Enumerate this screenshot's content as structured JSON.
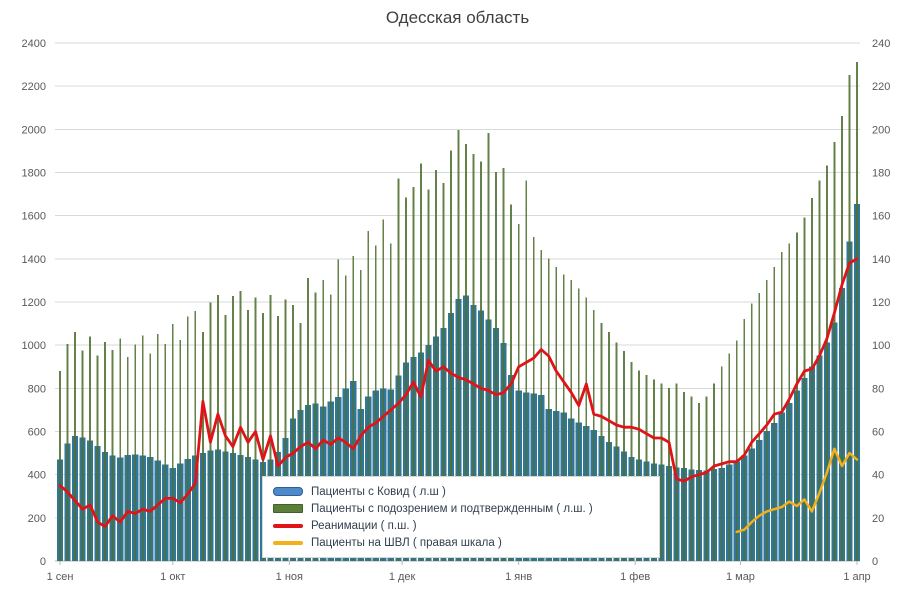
{
  "title": "Одесская область",
  "colors": {
    "bars_covid": "#307698",
    "bars_suspected": "#4f7030",
    "line_reanimation": "#e01417",
    "line_shvl": "#f2b01a",
    "grid": "#d9d9d9",
    "axis_line": "#b7b7b7",
    "axis_text": "#595959",
    "title_text": "#404040"
  },
  "legend": {
    "items": [
      {
        "label": "Пациенты с Ковид ( л.ш )",
        "type": "bar",
        "color": "#4e8ac9",
        "border": "#2d5e96"
      },
      {
        "label": "Пациенты с подозрением и подтвержденным ( л.ш. )",
        "type": "bar",
        "color": "#5b7e38",
        "border": "#42602a"
      },
      {
        "label": "Реанимации ( п.ш. )",
        "type": "line",
        "color": "#e01417",
        "border": "#e01417"
      },
      {
        "label": "Пациенты на ШВЛ ( правая шкала )",
        "type": "line",
        "color": "#f2b01a",
        "border": "#f2b01a"
      }
    ]
  },
  "chart_data": {
    "type": "bar+line combo, dual axis",
    "title": "Одесская область",
    "x_unit": "days since 1 сен, one point every 2 days",
    "day_range": [
      0,
      212
    ],
    "day_step": 2,
    "x_ticks": [
      {
        "label": "1 сен",
        "day": 0
      },
      {
        "label": "1 окт",
        "day": 30
      },
      {
        "label": "1 ноя",
        "day": 61
      },
      {
        "label": "1 дек",
        "day": 91
      },
      {
        "label": "1 янв",
        "day": 122
      },
      {
        "label": "1 фев",
        "day": 153
      },
      {
        "label": "1 мар",
        "day": 181
      },
      {
        "label": "1 апр",
        "day": 212
      }
    ],
    "left_axis": {
      "min": 0,
      "max": 2400,
      "step": 200
    },
    "right_axis": {
      "min": 0,
      "max": 240,
      "step": 20
    },
    "series": [
      {
        "name": "Пациенты с Ковид ( л.ш )",
        "type": "bar",
        "axis": "left",
        "color": "#307698",
        "start_day": 0,
        "values": [
          470,
          545,
          580,
          572,
          558,
          532,
          505,
          488,
          480,
          490,
          494,
          488,
          482,
          465,
          448,
          432,
          452,
          472,
          488,
          500,
          512,
          516,
          508,
          500,
          490,
          482,
          470,
          458,
          470,
          505,
          570,
          660,
          700,
          722,
          730,
          715,
          738,
          760,
          800,
          835,
          705,
          762,
          790,
          800,
          795,
          860,
          920,
          945,
          965,
          1000,
          1040,
          1080,
          1150,
          1215,
          1230,
          1185,
          1160,
          1120,
          1080,
          1010,
          862,
          790,
          780,
          775,
          768,
          705,
          695,
          688,
          660,
          642,
          625,
          608,
          580,
          552,
          530,
          508,
          482,
          470,
          462,
          452,
          448,
          440,
          434,
          430,
          424,
          421,
          420,
          426,
          432,
          446,
          462,
          488,
          522,
          560,
          602,
          640,
          688,
          732,
          790,
          848,
          902,
          952,
          1012,
          1105,
          1265,
          1480,
          1655
        ]
      },
      {
        "name": "Пациенты с подозрением и подтвержденным ( л.ш. )",
        "type": "bar",
        "axis": "left",
        "color": "#4f7030",
        "start_day": 0,
        "values": [
          880,
          1005,
          1060,
          975,
          1040,
          952,
          1015,
          978,
          1032,
          945,
          1002,
          1045,
          962,
          1052,
          1005,
          1098,
          1025,
          1132,
          1158,
          1062,
          1198,
          1232,
          1140,
          1228,
          1252,
          1162,
          1222,
          1148,
          1232,
          1135,
          1212,
          1185,
          1102,
          1312,
          1245,
          1302,
          1235,
          1398,
          1322,
          1412,
          1348,
          1528,
          1462,
          1582,
          1472,
          1772,
          1685,
          1732,
          1842,
          1722,
          1812,
          1752,
          1902,
          1998,
          1932,
          1885,
          1852,
          1982,
          1802,
          1822,
          1652,
          1562,
          1762,
          1502,
          1442,
          1402,
          1362,
          1328,
          1302,
          1262,
          1222,
          1162,
          1102,
          1062,
          1012,
          972,
          922,
          882,
          862,
          842,
          822,
          802,
          822,
          782,
          762,
          732,
          762,
          822,
          902,
          962,
          1022,
          1122,
          1192,
          1242,
          1302,
          1362,
          1432,
          1472,
          1522,
          1592,
          1682,
          1762,
          1832,
          1942,
          2062,
          2252,
          2312
        ]
      },
      {
        "name": "Реанимации ( п.ш. )",
        "type": "line",
        "axis": "right",
        "color": "#e01417",
        "start_day": 0,
        "values": [
          35,
          32,
          28,
          24,
          26,
          18,
          16,
          21,
          18,
          23,
          22,
          24,
          23,
          26,
          29,
          29,
          27,
          31,
          36,
          74,
          55,
          68,
          58,
          53,
          62,
          55,
          60,
          47,
          58,
          44,
          48,
          50,
          53,
          55,
          52,
          56,
          54,
          57,
          55,
          52,
          58,
          62,
          64,
          67,
          70,
          73,
          77,
          83,
          76,
          93,
          88,
          90,
          87,
          85,
          84,
          82,
          80,
          79,
          77,
          78,
          82,
          90,
          92,
          94,
          98,
          95,
          88,
          83,
          78,
          72,
          82,
          68,
          67,
          65,
          63,
          62,
          62,
          61,
          59,
          57,
          57,
          55,
          38,
          37,
          39,
          40,
          41,
          44,
          45,
          46,
          46,
          49,
          55,
          59,
          63,
          68,
          69,
          75,
          82,
          88,
          89,
          95,
          103,
          115,
          128,
          138,
          140
        ]
      },
      {
        "name": "Пациенты на ШВЛ ( правая шкала )",
        "type": "line",
        "axis": "right",
        "color": "#f2b01a",
        "start_day": 180,
        "values": [
          13.5,
          14.5,
          18,
          21,
          23,
          24,
          25,
          27.5,
          25.5,
          28.5,
          23,
          31.5,
          41,
          52,
          44,
          50,
          47
        ]
      }
    ]
  }
}
